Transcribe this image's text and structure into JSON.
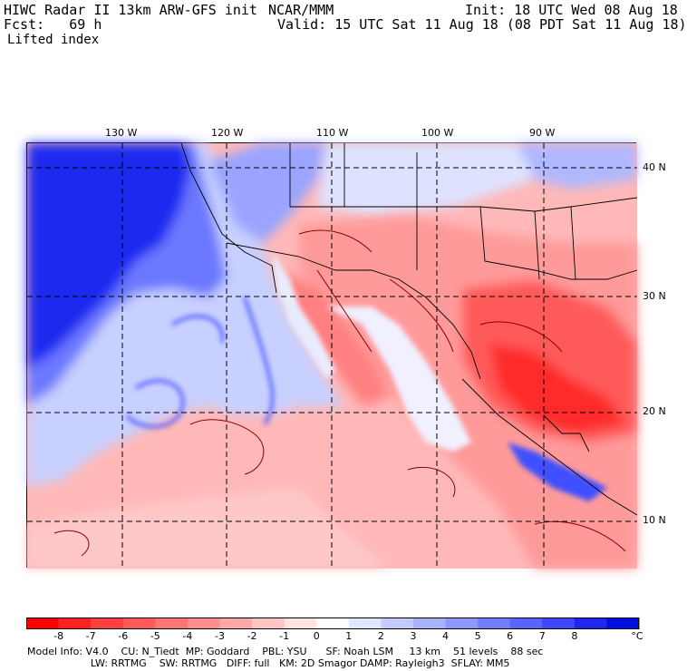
{
  "header": {
    "model_title": "HIWC Radar II 13km ARW-GFS init",
    "org": "NCAR/MMM",
    "init": "Init: 18 UTC Wed 08 Aug 18",
    "fcst": "Fcst:   69 h",
    "valid": "Valid: 15 UTC Sat 11 Aug 18 (08 PDT Sat 11 Aug 18)",
    "field": "Lifted index"
  },
  "axes": {
    "lon_labels": [
      "130 W",
      "120 W",
      "110 W",
      "100 W",
      "90 W"
    ],
    "lat_labels": [
      "40 N",
      "30 N",
      "20 N",
      "10 N"
    ]
  },
  "colorbar": {
    "labels": [
      "-8",
      "-7",
      "-6",
      "-5",
      "-4",
      "-3",
      "-2",
      "-1",
      "0",
      "1",
      "2",
      "3",
      "4",
      "5",
      "6",
      "7",
      "8"
    ],
    "unit": "°C",
    "colors": [
      "#ff0000",
      "#ff2020",
      "#ff4040",
      "#ff5a5a",
      "#ff7474",
      "#ff8e8e",
      "#ffa8a8",
      "#ffc4c4",
      "#ffe2e2",
      "#ffffff",
      "#e2e6ff",
      "#c4ccff",
      "#a8b2ff",
      "#8e98ff",
      "#747eff",
      "#5a64ff",
      "#4048ff",
      "#2028f0",
      "#0010e0"
    ]
  },
  "footer": {
    "line1": "Model Info: V4.0    CU: N_Tiedt  MP: Goddard    PBL: YSU      SF: Noah LSM     13 km    51 levels    88 sec",
    "line2": "                    LW: RRTMG    SW: RRTMG   DIFF: full   KM: 2D Smagor DAMP: Rayleigh3  SFLAY: MM5"
  }
}
